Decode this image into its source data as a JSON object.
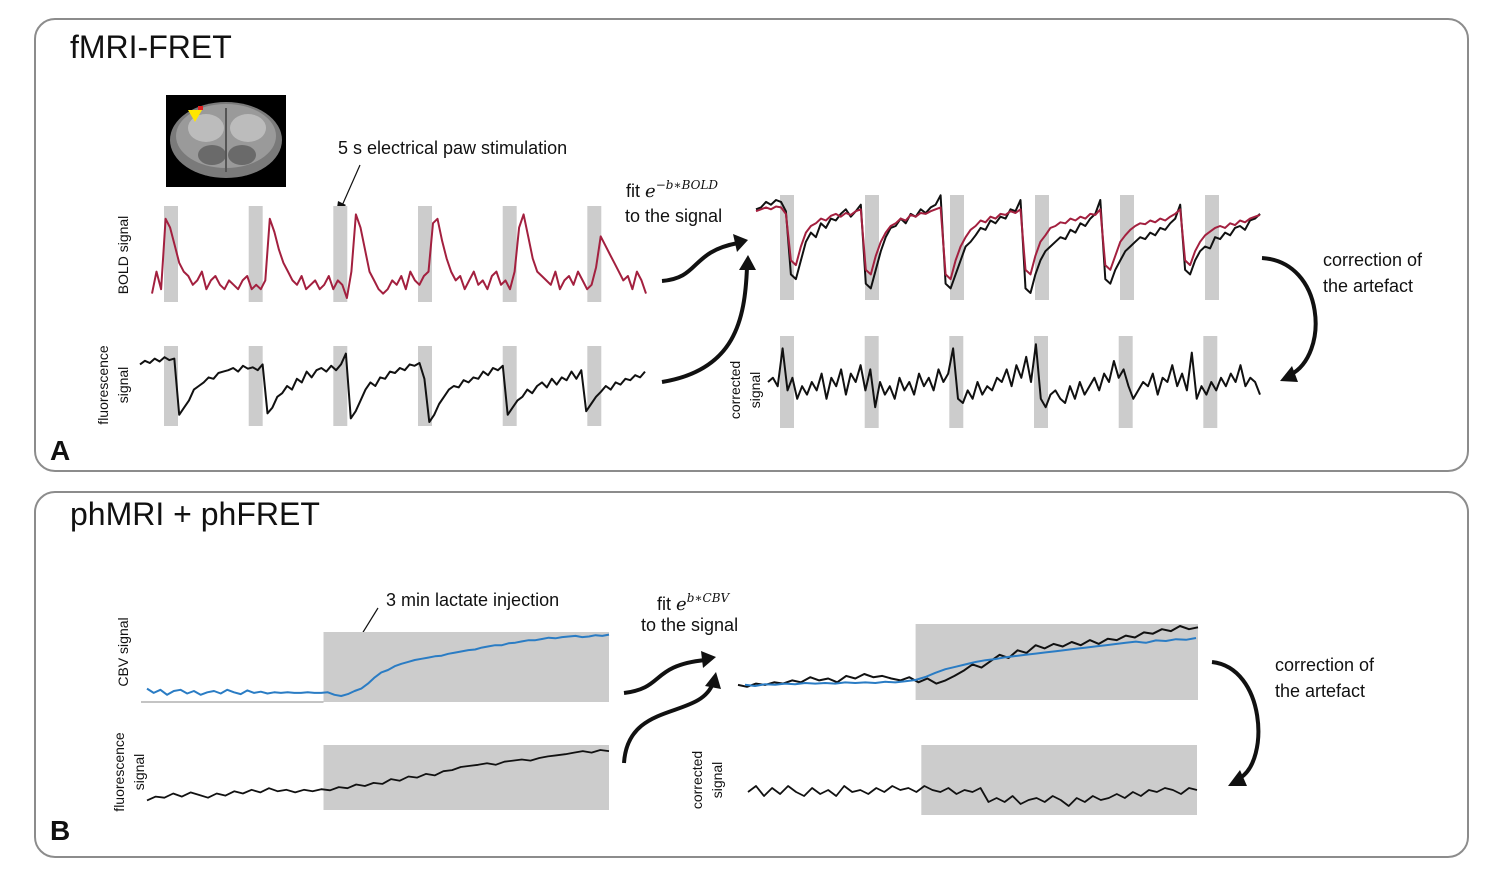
{
  "panel_a": {
    "label": "A",
    "title": "fMRI-FRET",
    "stim_annotation": "5 s electrical paw  stimulation",
    "fit_word": "fit",
    "fit_base": "e",
    "fit_exponent": "−b∗BOLD",
    "fit_rest": "to the signal",
    "correction_line1": "correction of",
    "correction_line2": "the artefact",
    "ylabel_bold": "BOLD signal",
    "ylabel_fluor_1": "fluorescence",
    "ylabel_fluor_2": "signal",
    "ylabel_corr_1": "corrected",
    "ylabel_corr_2": "signal"
  },
  "panel_b": {
    "label": "B",
    "title": "phMRI + phFRET",
    "inj_annotation": "3 min lactate injection",
    "fit_word": "fit",
    "fit_base": "e",
    "fit_exponent": "b∗CBV",
    "fit_rest": "to the signal",
    "correction_line1": "correction of",
    "correction_line2": "the artefact",
    "ylabel_cbv": "CBV signal",
    "ylabel_fluor_1": "fluorescence",
    "ylabel_fluor_2": "signal",
    "ylabel_corr_1": "corrected",
    "ylabel_corr_2": "signal"
  },
  "colors": {
    "bold_trace": "#a3203f",
    "cbv_trace": "#2a7cc4",
    "black_trace": "#111111",
    "stim_shade": "#cccccc",
    "panel_border": "#8c8c8c",
    "brain_roi": "#ffe600"
  },
  "chart_data": [
    {
      "type": "line",
      "panel": "A",
      "name": "BOLD signal",
      "stimulations": 6,
      "values": [
        0.05,
        0.3,
        0.1,
        0.9,
        0.8,
        0.6,
        0.4,
        0.3,
        0.25,
        0.15,
        0.2,
        0.3,
        0.1,
        0.2,
        0.25,
        0.15,
        0.1,
        0.2,
        0.15,
        0.1,
        0.2,
        0.25,
        0.1,
        0.15,
        0.1,
        0.2,
        0.9,
        0.75,
        0.55,
        0.4,
        0.3,
        0.2,
        0.15,
        0.25,
        0.1,
        0.15,
        0.2,
        0.1,
        0.15,
        0.25,
        0.1,
        0.2,
        0.15,
        0.0,
        0.3,
        0.95,
        0.8,
        0.55,
        0.3,
        0.2,
        0.1,
        0.05,
        0.1,
        0.2,
        0.15,
        0.25,
        0.1,
        0.3,
        0.2,
        0.15,
        0.25,
        0.3,
        0.85,
        0.9,
        0.65,
        0.45,
        0.3,
        0.2,
        0.25,
        0.1,
        0.2,
        0.3,
        0.15,
        0.2,
        0.1,
        0.25,
        0.3,
        0.15,
        0.2,
        0.1,
        0.3,
        0.8,
        0.95,
        0.7,
        0.45,
        0.3,
        0.25,
        0.2,
        0.15,
        0.3,
        0.1,
        0.2,
        0.25,
        0.15,
        0.3,
        0.2,
        0.1,
        0.15,
        0.35,
        0.7,
        0.6,
        0.5,
        0.4,
        0.3,
        0.2,
        0.25,
        0.1,
        0.3,
        0.2,
        0.05
      ]
    },
    {
      "type": "line",
      "panel": "A",
      "name": "fluorescence signal",
      "stimulations": 6,
      "values": [
        0.8,
        0.85,
        0.82,
        0.88,
        0.84,
        0.9,
        0.86,
        0.88,
        0.1,
        0.2,
        0.3,
        0.45,
        0.5,
        0.55,
        0.62,
        0.6,
        0.68,
        0.7,
        0.72,
        0.75,
        0.7,
        0.78,
        0.74,
        0.76,
        0.72,
        0.8,
        0.12,
        0.2,
        0.35,
        0.4,
        0.5,
        0.45,
        0.6,
        0.55,
        0.7,
        0.62,
        0.72,
        0.75,
        0.7,
        0.78,
        0.72,
        0.8,
        0.95,
        0.05,
        0.15,
        0.3,
        0.45,
        0.55,
        0.5,
        0.62,
        0.6,
        0.7,
        0.68,
        0.75,
        0.72,
        0.8,
        0.78,
        0.82,
        0.6,
        0.0,
        0.1,
        0.25,
        0.35,
        0.45,
        0.5,
        0.48,
        0.58,
        0.55,
        0.62,
        0.6,
        0.7,
        0.65,
        0.75,
        0.72,
        0.78,
        0.1,
        0.2,
        0.3,
        0.35,
        0.45,
        0.4,
        0.5,
        0.55,
        0.48,
        0.6,
        0.52,
        0.62,
        0.58,
        0.7,
        0.6,
        0.72,
        0.15,
        0.25,
        0.35,
        0.42,
        0.5,
        0.45,
        0.55,
        0.52,
        0.6,
        0.58,
        0.65,
        0.62,
        0.7
      ]
    },
    {
      "type": "line",
      "panel": "A",
      "name": "fluorescence (fit overlay)",
      "stimulations": 6,
      "values": [
        0.9,
        0.92,
        0.98,
        0.95,
        1.0,
        0.98,
        0.88,
        0.2,
        0.15,
        0.35,
        0.55,
        0.65,
        0.6,
        0.75,
        0.7,
        0.8,
        0.78,
        0.85,
        0.9,
        0.82,
        0.88,
        0.95,
        0.1,
        0.05,
        0.25,
        0.45,
        0.6,
        0.7,
        0.72,
        0.8,
        0.75,
        0.85,
        0.82,
        0.9,
        0.86,
        0.92,
        0.95,
        1.05,
        0.1,
        0.05,
        0.2,
        0.35,
        0.5,
        0.55,
        0.62,
        0.7,
        0.68,
        0.78,
        0.75,
        0.82,
        0.8,
        0.9,
        0.88,
        1.0,
        0.05,
        0.0,
        0.2,
        0.35,
        0.45,
        0.5,
        0.55,
        0.6,
        0.58,
        0.68,
        0.65,
        0.75,
        0.72,
        0.8,
        0.85,
        1.0,
        0.15,
        0.1,
        0.25,
        0.35,
        0.45,
        0.5,
        0.55,
        0.6,
        0.58,
        0.65,
        0.62,
        0.7,
        0.68,
        0.75,
        0.8,
        0.95,
        0.25,
        0.2,
        0.35,
        0.45,
        0.5,
        0.48,
        0.6,
        0.58,
        0.65,
        0.62,
        0.7,
        0.72,
        0.68,
        0.78,
        0.8,
        0.85
      ]
    },
    {
      "type": "line",
      "panel": "A",
      "name": "BOLD fit",
      "stimulations": 6,
      "values": [
        0.88,
        0.9,
        0.92,
        0.9,
        0.93,
        0.92,
        0.85,
        0.35,
        0.3,
        0.5,
        0.65,
        0.72,
        0.75,
        0.8,
        0.78,
        0.83,
        0.85,
        0.82,
        0.86,
        0.84,
        0.88,
        0.9,
        0.25,
        0.2,
        0.4,
        0.55,
        0.65,
        0.72,
        0.75,
        0.8,
        0.78,
        0.84,
        0.82,
        0.86,
        0.85,
        0.88,
        0.9,
        0.92,
        0.2,
        0.15,
        0.35,
        0.5,
        0.6,
        0.68,
        0.72,
        0.78,
        0.76,
        0.82,
        0.8,
        0.85,
        0.84,
        0.88,
        0.86,
        0.9,
        0.25,
        0.2,
        0.4,
        0.55,
        0.62,
        0.7,
        0.72,
        0.76,
        0.75,
        0.8,
        0.78,
        0.82,
        0.8,
        0.85,
        0.84,
        0.9,
        0.3,
        0.25,
        0.4,
        0.55,
        0.62,
        0.68,
        0.72,
        0.75,
        0.74,
        0.78,
        0.76,
        0.8,
        0.78,
        0.82,
        0.85,
        0.9,
        0.35,
        0.3,
        0.45,
        0.55,
        0.62,
        0.66,
        0.7,
        0.72,
        0.7,
        0.75,
        0.73,
        0.78,
        0.76,
        0.8,
        0.82,
        0.84
      ]
    },
    {
      "type": "line",
      "panel": "A",
      "name": "corrected signal",
      "stimulations": 6,
      "values": [
        0.5,
        0.55,
        0.45,
        0.9,
        0.4,
        0.55,
        0.3,
        0.45,
        0.35,
        0.5,
        0.4,
        0.6,
        0.3,
        0.55,
        0.45,
        0.65,
        0.35,
        0.6,
        0.5,
        0.7,
        0.4,
        0.65,
        0.2,
        0.5,
        0.35,
        0.45,
        0.3,
        0.55,
        0.4,
        0.5,
        0.35,
        0.6,
        0.45,
        0.55,
        0.4,
        0.65,
        0.5,
        0.6,
        0.9,
        0.3,
        0.25,
        0.4,
        0.3,
        0.5,
        0.35,
        0.45,
        0.4,
        0.55,
        0.5,
        0.65,
        0.45,
        0.7,
        0.55,
        0.8,
        0.5,
        0.95,
        0.3,
        0.2,
        0.35,
        0.4,
        0.3,
        0.25,
        0.45,
        0.3,
        0.5,
        0.35,
        0.45,
        0.55,
        0.4,
        0.6,
        0.5,
        0.75,
        0.55,
        0.65,
        0.45,
        0.3,
        0.4,
        0.5,
        0.45,
        0.6,
        0.35,
        0.55,
        0.5,
        0.7,
        0.45,
        0.6,
        0.4,
        0.85,
        0.3,
        0.45,
        0.35,
        0.5,
        0.4,
        0.55,
        0.45,
        0.6,
        0.5,
        0.7,
        0.45,
        0.55,
        0.5,
        0.35
      ]
    },
    {
      "type": "line",
      "panel": "B",
      "name": "CBV signal",
      "injection_window": [
        0.39,
        1.0
      ],
      "values": [
        0.12,
        0.05,
        0.1,
        0.02,
        0.08,
        0.1,
        0.04,
        0.08,
        0.02,
        0.06,
        0.08,
        0.04,
        0.1,
        0.06,
        0.03,
        0.09,
        0.05,
        0.07,
        0.04,
        0.06,
        0.05,
        0.06,
        0.05,
        0.05,
        0.06,
        0.05,
        0.05,
        0.06,
        0.02,
        0.0,
        0.03,
        0.08,
        0.12,
        0.2,
        0.3,
        0.38,
        0.42,
        0.48,
        0.52,
        0.55,
        0.58,
        0.6,
        0.62,
        0.64,
        0.65,
        0.68,
        0.7,
        0.72,
        0.74,
        0.75,
        0.78,
        0.8,
        0.82,
        0.82,
        0.85,
        0.86,
        0.88,
        0.9,
        0.9,
        0.92,
        0.94,
        0.93,
        0.95,
        0.96,
        0.97,
        0.95,
        0.96,
        0.98,
        0.97,
        0.99
      ]
    },
    {
      "type": "line",
      "panel": "B",
      "name": "fluorescence signal",
      "injection_window": [
        0.39,
        1.0
      ],
      "values": [
        0.05,
        0.12,
        0.1,
        0.18,
        0.12,
        0.2,
        0.15,
        0.1,
        0.18,
        0.14,
        0.22,
        0.18,
        0.25,
        0.2,
        0.28,
        0.22,
        0.25,
        0.2,
        0.25,
        0.22,
        0.26,
        0.24,
        0.3,
        0.28,
        0.35,
        0.32,
        0.38,
        0.36,
        0.45,
        0.42,
        0.5,
        0.48,
        0.55,
        0.52,
        0.6,
        0.62,
        0.68,
        0.7,
        0.72,
        0.75,
        0.72,
        0.78,
        0.8,
        0.82,
        0.8,
        0.85,
        0.88,
        0.9,
        0.92,
        0.95,
        0.98,
        0.95,
        1.0,
        0.98
      ]
    },
    {
      "type": "line",
      "panel": "B",
      "name": "fluorescence (fit overlay)",
      "injection_window": [
        0.39,
        1.0
      ],
      "values": [
        0.08,
        0.05,
        0.1,
        0.08,
        0.12,
        0.1,
        0.15,
        0.12,
        0.2,
        0.15,
        0.18,
        0.12,
        0.22,
        0.18,
        0.25,
        0.2,
        0.22,
        0.18,
        0.15,
        0.2,
        0.12,
        0.18,
        0.1,
        0.15,
        0.22,
        0.3,
        0.4,
        0.35,
        0.45,
        0.55,
        0.5,
        0.62,
        0.58,
        0.7,
        0.65,
        0.72,
        0.68,
        0.75,
        0.7,
        0.78,
        0.72,
        0.8,
        0.78,
        0.85,
        0.82,
        0.9,
        0.88,
        0.95,
        0.92,
        1.0,
        0.95,
        0.98
      ]
    },
    {
      "type": "line",
      "panel": "B",
      "name": "CBV fit",
      "injection_window": [
        0.39,
        1.0
      ],
      "values": [
        0.12,
        0.1,
        0.13,
        0.12,
        0.14,
        0.13,
        0.15,
        0.14,
        0.15,
        0.14,
        0.16,
        0.15,
        0.16,
        0.15,
        0.17,
        0.16,
        0.18,
        0.2,
        0.25,
        0.32,
        0.38,
        0.42,
        0.46,
        0.5,
        0.53,
        0.55,
        0.58,
        0.6,
        0.62,
        0.64,
        0.66,
        0.68,
        0.7,
        0.72,
        0.74,
        0.76,
        0.78,
        0.8,
        0.82,
        0.84,
        0.82,
        0.86,
        0.85,
        0.88,
        0.87,
        0.9
      ]
    },
    {
      "type": "line",
      "panel": "B",
      "name": "corrected signal",
      "injection_window": [
        0.39,
        1.0
      ],
      "values": [
        0.45,
        0.6,
        0.35,
        0.55,
        0.4,
        0.6,
        0.45,
        0.35,
        0.55,
        0.4,
        0.5,
        0.35,
        0.6,
        0.45,
        0.5,
        0.4,
        0.55,
        0.45,
        0.6,
        0.5,
        0.55,
        0.45,
        0.6,
        0.5,
        0.45,
        0.55,
        0.4,
        0.5,
        0.45,
        0.55,
        0.2,
        0.3,
        0.2,
        0.35,
        0.15,
        0.25,
        0.3,
        0.2,
        0.35,
        0.25,
        0.1,
        0.3,
        0.2,
        0.35,
        0.25,
        0.3,
        0.4,
        0.3,
        0.45,
        0.35,
        0.5,
        0.45,
        0.55,
        0.5,
        0.4,
        0.55,
        0.5
      ]
    }
  ]
}
